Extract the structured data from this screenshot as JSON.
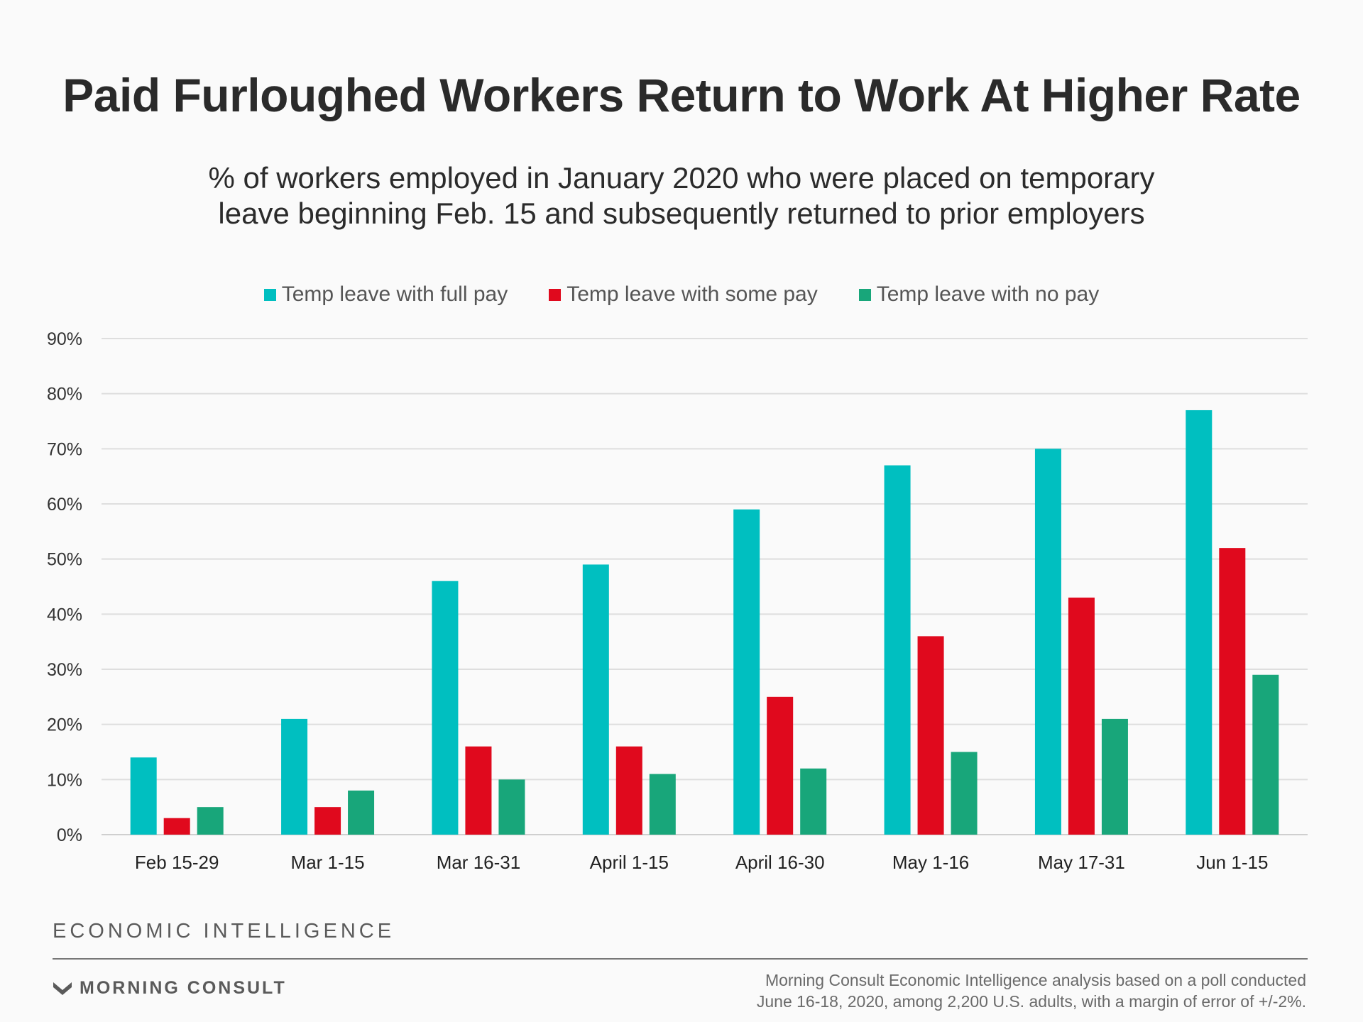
{
  "header": {
    "title": "Paid Furloughed Workers Return to Work At Higher Rate",
    "subtitle_line1": "% of workers employed in January 2020 who were placed on temporary",
    "subtitle_line2": "leave beginning Feb. 15 and subsequently returned to prior employers"
  },
  "legend": [
    {
      "label": "Temp leave with full pay",
      "color": "#00bfc0"
    },
    {
      "label": "Temp leave with some pay",
      "color": "#e0091d"
    },
    {
      "label": "Temp leave with no pay",
      "color": "#18a67a"
    }
  ],
  "chart_data": {
    "type": "bar",
    "categories": [
      "Feb 15-29",
      "Mar 1-15",
      "Mar 16-31",
      "April 1-15",
      "April 16-30",
      "May 1-16",
      "May 17-31",
      "Jun 1-15"
    ],
    "series": [
      {
        "name": "Temp leave with full pay",
        "color": "#00bfc0",
        "values": [
          14,
          21,
          46,
          49,
          59,
          67,
          70,
          77
        ]
      },
      {
        "name": "Temp leave with some pay",
        "color": "#e0091d",
        "values": [
          3,
          5,
          16,
          16,
          25,
          36,
          43,
          52
        ]
      },
      {
        "name": "Temp leave with no pay",
        "color": "#18a67a",
        "values": [
          5,
          8,
          10,
          11,
          12,
          15,
          21,
          29
        ]
      }
    ],
    "ylim": [
      0,
      90
    ],
    "yticks": [
      "0%",
      "10%",
      "20%",
      "30%",
      "40%",
      "50%",
      "60%",
      "70%",
      "80%",
      "90%"
    ],
    "grid": true,
    "legend_position": "top"
  },
  "footer": {
    "section_label": "ECONOMIC INTELLIGENCE",
    "brand": "MORNING CONSULT",
    "source_line1": "Morning Consult Economic Intelligence analysis based on a poll conducted",
    "source_line2": "June 16-18, 2020, among 2,200 U.S. adults, with a margin of error of +/-2%."
  }
}
